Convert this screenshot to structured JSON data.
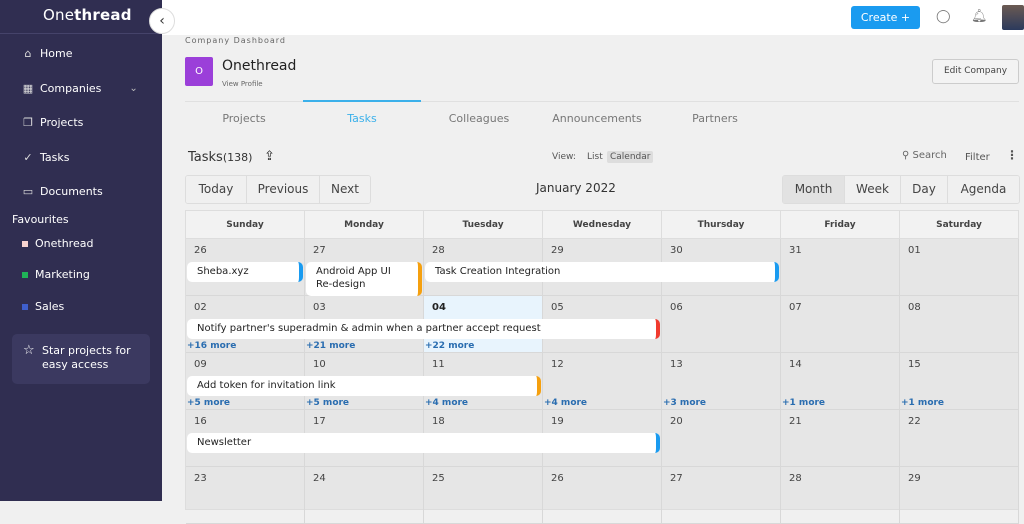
{
  "sidebar": {
    "logo_light": "One",
    "logo_bold": "thread",
    "nav": [
      {
        "label": "Home",
        "icon": "home-icon"
      },
      {
        "label": "Companies",
        "icon": "grid-icon"
      },
      {
        "label": "Projects",
        "icon": "projects-icon"
      },
      {
        "label": "Tasks",
        "icon": "check-circle-icon"
      },
      {
        "label": "Documents",
        "icon": "folder-icon"
      }
    ],
    "favourites_title": "Favourites",
    "favourites": [
      {
        "label": "Onethread",
        "color": "#f7d3d0"
      },
      {
        "label": "Marketing",
        "color": "#1fb357"
      },
      {
        "label": "Sales",
        "color": "#3f5fcc"
      }
    ],
    "star_hint": "Star projects for easy access"
  },
  "topbar": {
    "create_label": "Create +"
  },
  "company": {
    "breadcrumb": "Company Dashboard",
    "initial": "O",
    "name": "Onethread",
    "view_profile": "View Profile",
    "edit_label": "Edit Company"
  },
  "tabs": [
    "Projects",
    "Tasks",
    "Colleagues",
    "Announcements",
    "Partners"
  ],
  "tasks": {
    "title": "Tasks",
    "count": "(138)",
    "view_label": "View:",
    "list_label": "List",
    "calendar_label": "Calendar",
    "search_label": "Search",
    "filter_label": "Filter"
  },
  "calendar": {
    "nav": [
      "Today",
      "Previous",
      "Next"
    ],
    "month": "January 2022",
    "views": [
      "Month",
      "Week",
      "Day",
      "Agenda"
    ],
    "days": [
      "Sunday",
      "Monday",
      "Tuesday",
      "Wednesday",
      "Thursday",
      "Friday",
      "Saturday"
    ],
    "weeks": [
      [
        "26",
        "27",
        "28",
        "29",
        "30",
        "31",
        "01"
      ],
      [
        "02",
        "03",
        "04",
        "05",
        "06",
        "07",
        "08"
      ],
      [
        "09",
        "10",
        "11",
        "12",
        "13",
        "14",
        "15"
      ],
      [
        "16",
        "17",
        "18",
        "19",
        "20",
        "21",
        "22"
      ],
      [
        "23",
        "24",
        "25",
        "26",
        "27",
        "28",
        "29"
      ]
    ],
    "today": {
      "week": 1,
      "day": 2
    },
    "events": [
      {
        "title": "Sheba.xyz",
        "week": 0,
        "start": 0,
        "span": 1,
        "color": "#1a9bf0"
      },
      {
        "title": "Android App UI Re-design",
        "week": 0,
        "start": 1,
        "span": 1,
        "color": "#f5a00f",
        "lines": 2
      },
      {
        "title": "Task Creation Integration",
        "week": 0,
        "start": 2,
        "span": 3,
        "color": "#1a9bf0"
      },
      {
        "title": "Notify partner's superadmin & admin when a partner accept request",
        "week": 1,
        "start": 0,
        "span": 4,
        "color": "#f03a2e"
      },
      {
        "title": "Add token for invitation link",
        "week": 2,
        "start": 0,
        "span": 3,
        "color": "#f5a00f"
      },
      {
        "title": "Newsletter",
        "week": 3,
        "start": 0,
        "span": 4,
        "color": "#1a9bf0"
      }
    ],
    "more": [
      {
        "week": 1,
        "day": 0,
        "text": "+16 more"
      },
      {
        "week": 1,
        "day": 1,
        "text": "+21 more"
      },
      {
        "week": 1,
        "day": 2,
        "text": "+22 more"
      },
      {
        "week": 2,
        "day": 0,
        "text": "+5 more"
      },
      {
        "week": 2,
        "day": 1,
        "text": "+5 more"
      },
      {
        "week": 2,
        "day": 2,
        "text": "+4 more"
      },
      {
        "week": 2,
        "day": 3,
        "text": "+4 more"
      },
      {
        "week": 2,
        "day": 4,
        "text": "+3 more"
      },
      {
        "week": 2,
        "day": 5,
        "text": "+1 more"
      },
      {
        "week": 2,
        "day": 6,
        "text": "+1 more"
      }
    ]
  }
}
